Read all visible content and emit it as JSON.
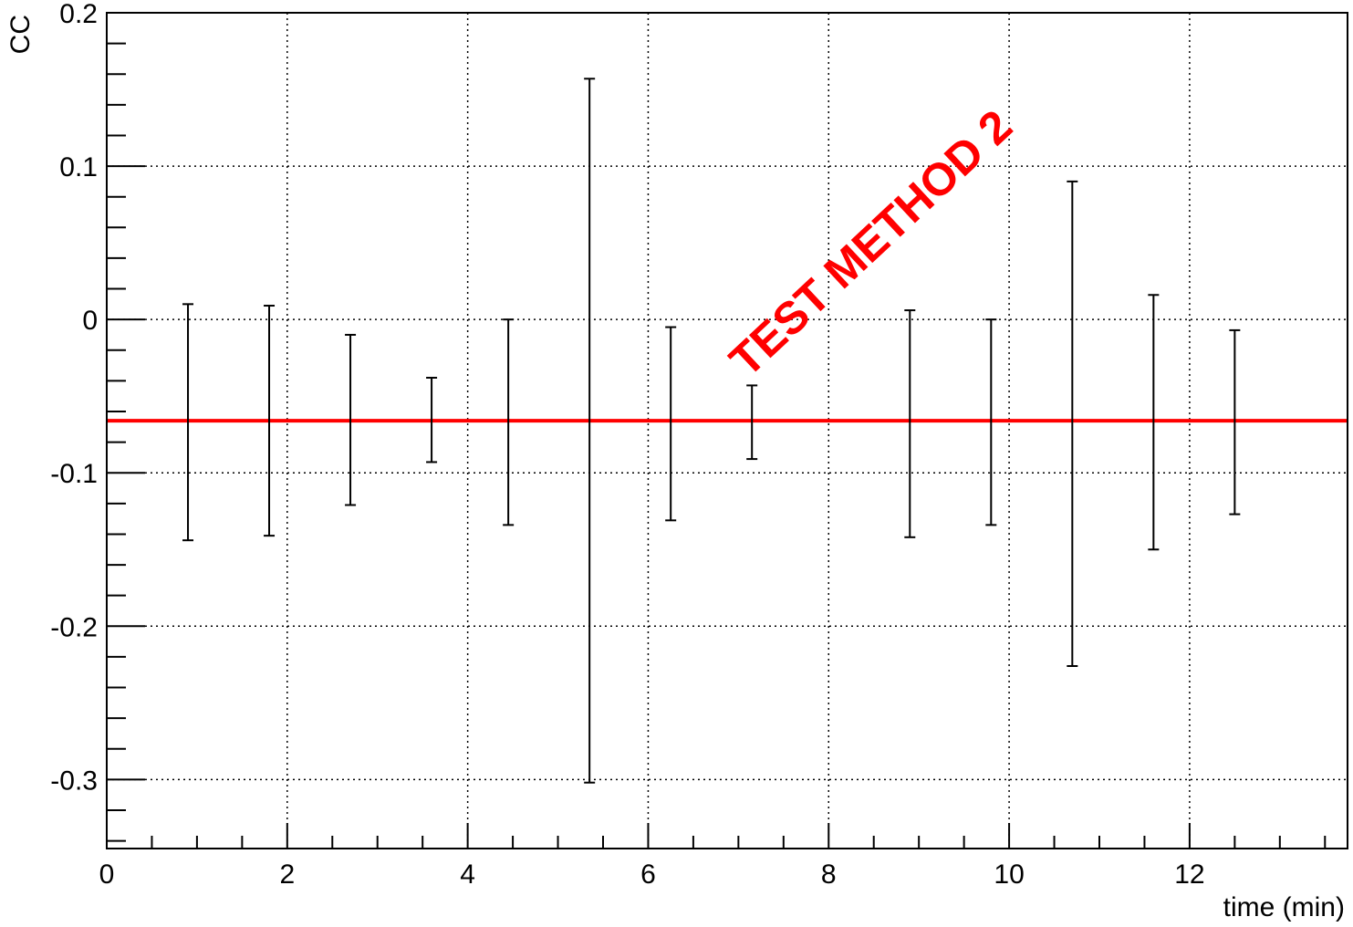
{
  "chart_data": {
    "type": "scatter",
    "title": "",
    "xlabel": "time (min)",
    "ylabel": "CC",
    "xlim": [
      0,
      13.75
    ],
    "ylim": [
      -0.345,
      0.2
    ],
    "x_ticks": [
      0,
      2,
      4,
      6,
      8,
      10,
      12
    ],
    "x_tick_labels": [
      "0",
      "2",
      "4",
      "6",
      "8",
      "10",
      "12"
    ],
    "y_ticks": [
      -0.3,
      -0.2,
      -0.1,
      0,
      0.1,
      0.2
    ],
    "y_tick_labels": [
      "-0.3",
      "-0.2",
      "-0.1",
      "0",
      "0.1",
      "0.2"
    ],
    "grid": true,
    "points": [
      {
        "x": 0.9,
        "y_low": -0.144,
        "y_high": 0.01
      },
      {
        "x": 1.8,
        "y_low": -0.141,
        "y_high": 0.009
      },
      {
        "x": 2.7,
        "y_low": -0.121,
        "y_high": -0.01
      },
      {
        "x": 3.6,
        "y_low": -0.093,
        "y_high": -0.038
      },
      {
        "x": 4.45,
        "y_low": -0.134,
        "y_high": 0.0
      },
      {
        "x": 5.35,
        "y_low": -0.302,
        "y_high": 0.157
      },
      {
        "x": 6.25,
        "y_low": -0.131,
        "y_high": -0.005
      },
      {
        "x": 7.15,
        "y_low": -0.091,
        "y_high": -0.043
      },
      {
        "x": 8.9,
        "y_low": -0.142,
        "y_high": 0.006
      },
      {
        "x": 9.8,
        "y_low": -0.134,
        "y_high": 0.0
      },
      {
        "x": 10.7,
        "y_low": -0.226,
        "y_high": 0.09
      },
      {
        "x": 11.6,
        "y_low": -0.15,
        "y_high": 0.016
      },
      {
        "x": 12.5,
        "y_low": -0.127,
        "y_high": -0.007
      }
    ],
    "fit_line": {
      "y": -0.066,
      "color": "#ff0000"
    },
    "annotation": {
      "text": "TEST METHOD 2",
      "color": "#ff0000"
    },
    "colors": {
      "error_bars": "#000000",
      "frame": "#000000",
      "grid": "#000000"
    }
  }
}
